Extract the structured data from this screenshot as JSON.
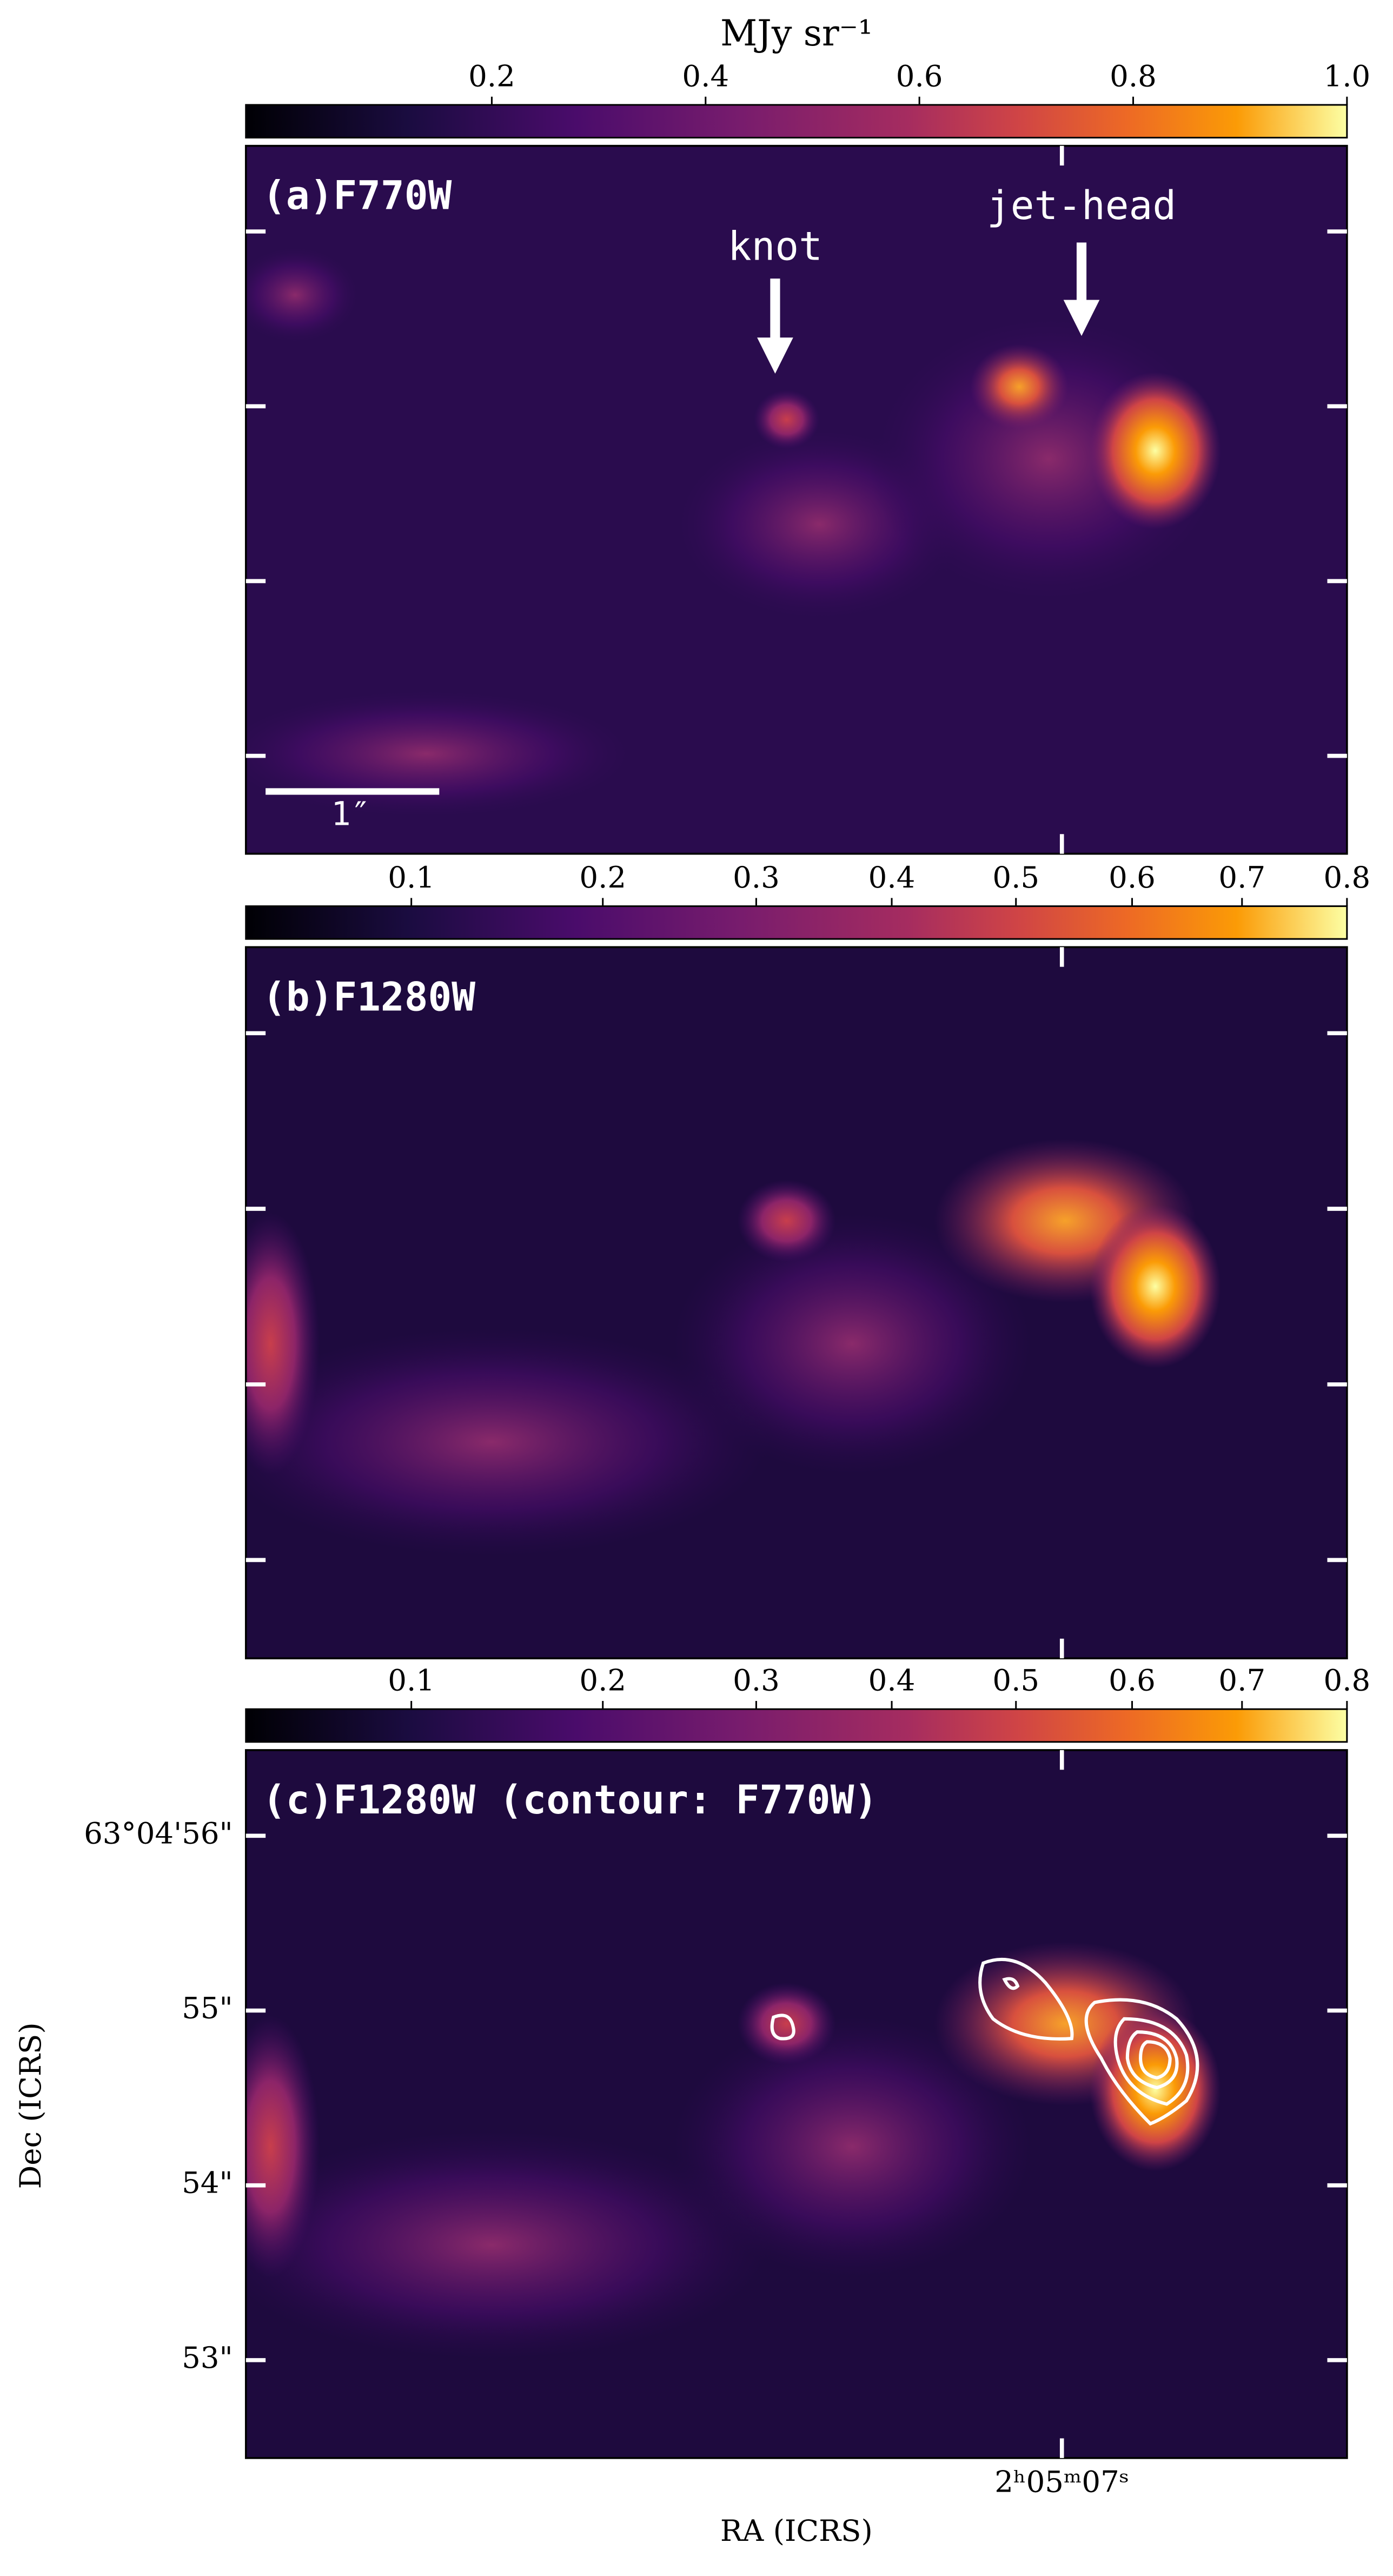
{
  "chart_data": [
    {
      "type": "image",
      "label": "(a)F770W",
      "colorbar_label": "MJy sr⁻¹",
      "cmap": "inferno",
      "stretch": "linear",
      "clim": [
        -0.03,
        1.0
      ],
      "cticks": [
        0.2,
        0.4,
        0.6,
        0.8,
        {
          "value": 1.0,
          "label": "1.0"
        }
      ],
      "annotations": [
        "knot",
        "jet-head"
      ],
      "scalebar": "1″"
    },
    {
      "type": "image",
      "label": "(b)F1280W",
      "cmap": "inferno",
      "stretch": "power",
      "exponent": 0.7,
      "clim": [
        0.05,
        0.8
      ],
      "cticks": [
        0.1,
        0.2,
        0.3,
        0.4,
        0.5,
        0.6,
        0.7,
        0.8
      ]
    },
    {
      "type": "image",
      "label": "(c)F1280W (contour: F770W)",
      "cmap": "inferno",
      "stretch": "power",
      "exponent": 0.7,
      "clim": [
        0.05,
        0.8
      ],
      "cticks": [
        0.1,
        0.2,
        0.3,
        0.4,
        0.5,
        0.6,
        0.7,
        0.8
      ],
      "xlabel": "RA (ICRS)",
      "ylabel": "Dec (ICRS)",
      "xlim": [
        7.687,
        6.76
      ],
      "xticks": [
        {
          "value": 7,
          "label": "2ʰ05ᵐ07ˢ"
        }
      ],
      "ylim": [
        52.44,
        56.49
      ],
      "yticks": [
        {
          "value": 56,
          "label": "63°04'56\""
        },
        {
          "value": 55,
          "label": "55\""
        },
        {
          "value": 54,
          "label": "54\""
        },
        {
          "value": 53,
          "label": "53\""
        }
      ]
    }
  ]
}
